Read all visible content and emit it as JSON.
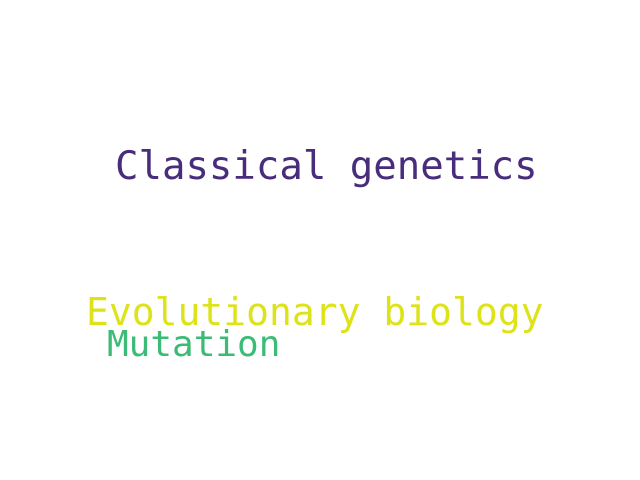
{
  "words": [
    {
      "text": "Classical genetics",
      "color": "#472d7b"
    },
    {
      "text": "Evolutionary biology",
      "color": "#dde318"
    },
    {
      "text": "Mutation",
      "color": "#3bbb75"
    }
  ]
}
